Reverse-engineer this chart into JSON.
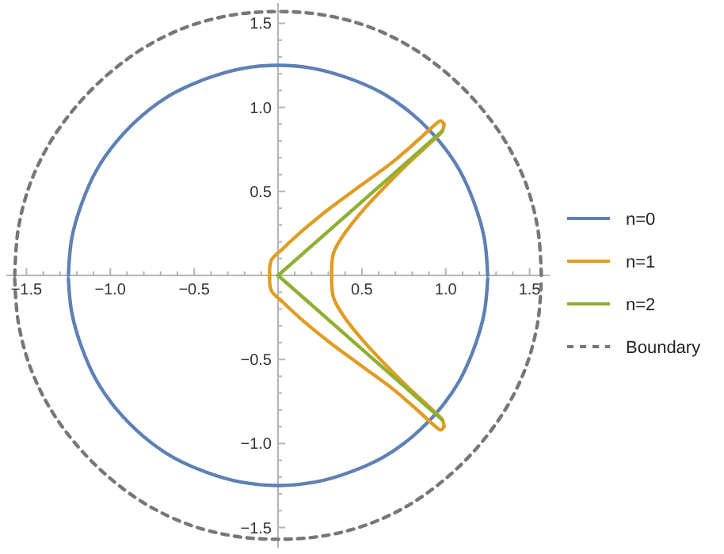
{
  "chart_data": {
    "type": "line",
    "xlim": [
      -1.62,
      1.62
    ],
    "ylim": [
      -1.62,
      1.62
    ],
    "xticks": [
      {
        "value": -1.5,
        "label": "−1.5"
      },
      {
        "value": -1.4,
        "label": null
      },
      {
        "value": -1.3,
        "label": null
      },
      {
        "value": -1.2,
        "label": null
      },
      {
        "value": -1.1,
        "label": null
      },
      {
        "value": -1.0,
        "label": "−1.0"
      },
      {
        "value": -0.9,
        "label": null
      },
      {
        "value": -0.8,
        "label": null
      },
      {
        "value": -0.7,
        "label": null
      },
      {
        "value": -0.6,
        "label": null
      },
      {
        "value": -0.5,
        "label": "−0.5"
      },
      {
        "value": -0.4,
        "label": null
      },
      {
        "value": -0.3,
        "label": null
      },
      {
        "value": -0.2,
        "label": null
      },
      {
        "value": -0.1,
        "label": null
      },
      {
        "value": 0.1,
        "label": null
      },
      {
        "value": 0.2,
        "label": null
      },
      {
        "value": 0.3,
        "label": null
      },
      {
        "value": 0.4,
        "label": null
      },
      {
        "value": 0.5,
        "label": "0.5"
      },
      {
        "value": 0.6,
        "label": null
      },
      {
        "value": 0.7,
        "label": null
      },
      {
        "value": 0.8,
        "label": null
      },
      {
        "value": 0.9,
        "label": null
      },
      {
        "value": 1.0,
        "label": "1.0"
      },
      {
        "value": 1.1,
        "label": null
      },
      {
        "value": 1.2,
        "label": null
      },
      {
        "value": 1.3,
        "label": null
      },
      {
        "value": 1.4,
        "label": null
      },
      {
        "value": 1.5,
        "label": "1.5"
      }
    ],
    "yticks": [
      {
        "value": -1.5,
        "label": "−1.5"
      },
      {
        "value": -1.4,
        "label": null
      },
      {
        "value": -1.3,
        "label": null
      },
      {
        "value": -1.2,
        "label": null
      },
      {
        "value": -1.1,
        "label": null
      },
      {
        "value": -1.0,
        "label": "−1.0"
      },
      {
        "value": -0.9,
        "label": null
      },
      {
        "value": -0.8,
        "label": null
      },
      {
        "value": -0.7,
        "label": null
      },
      {
        "value": -0.6,
        "label": null
      },
      {
        "value": -0.5,
        "label": "−0.5"
      },
      {
        "value": -0.4,
        "label": null
      },
      {
        "value": -0.3,
        "label": null
      },
      {
        "value": -0.2,
        "label": null
      },
      {
        "value": -0.1,
        "label": null
      },
      {
        "value": 0.1,
        "label": null
      },
      {
        "value": 0.2,
        "label": null
      },
      {
        "value": 0.3,
        "label": null
      },
      {
        "value": 0.4,
        "label": null
      },
      {
        "value": 0.5,
        "label": "0.5"
      },
      {
        "value": 0.6,
        "label": null
      },
      {
        "value": 0.7,
        "label": null
      },
      {
        "value": 0.8,
        "label": null
      },
      {
        "value": 0.9,
        "label": null
      },
      {
        "value": 1.0,
        "label": "1.0"
      },
      {
        "value": 1.1,
        "label": null
      },
      {
        "value": 1.2,
        "label": null
      },
      {
        "value": 1.3,
        "label": null
      },
      {
        "value": 1.4,
        "label": null
      },
      {
        "value": 1.5,
        "label": "1.5"
      }
    ],
    "legend": "right",
    "marker": "none",
    "series": [
      {
        "name": "n=0",
        "color": "#5e81b5",
        "line_style": "solid",
        "x": [
          1.25,
          1.23,
          1.17,
          1.08,
          0.96,
          0.8,
          0.63,
          0.43,
          0.22,
          0,
          -0.22,
          -0.43,
          -0.63,
          -0.8,
          -0.96,
          -1.08,
          -1.17,
          -1.23,
          -1.25
        ],
        "values": [
          0,
          0.22,
          0.43,
          0.63,
          0.8,
          0.96,
          1.08,
          1.17,
          1.23,
          1.25,
          1.23,
          1.17,
          1.08,
          0.96,
          0.8,
          0.63,
          0.43,
          0.22,
          0
        ]
      },
      {
        "color": "#5e81b5",
        "line_style": "solid",
        "x": [
          -1.25,
          -1.23,
          -1.17,
          -1.08,
          -0.96,
          -0.8,
          -0.63,
          -0.43,
          -0.22,
          0,
          0.22,
          0.43,
          0.63,
          0.8,
          0.96,
          1.08,
          1.17,
          1.23,
          1.25
        ],
        "values": [
          -0.02,
          -0.22,
          -0.43,
          -0.63,
          -0.8,
          -0.96,
          -1.08,
          -1.17,
          -1.23,
          -1.25,
          -1.23,
          -1.17,
          -1.08,
          -0.96,
          -0.8,
          -0.63,
          -0.43,
          -0.22,
          -0.02
        ]
      },
      {
        "name": "n=1",
        "color": "#e19c24",
        "line_style": "solid",
        "x": [
          -0.05,
          -0.04,
          0.03,
          0.15,
          0.31,
          0.5,
          0.69,
          0.84,
          0.94,
          0.97,
          0.99
        ],
        "values": [
          0,
          0.09,
          0.16,
          0.27,
          0.4,
          0.54,
          0.68,
          0.81,
          0.9,
          0.92,
          0.9
        ]
      },
      {
        "color": "#e19c24",
        "line_style": "solid",
        "x": [
          0.99,
          0.98,
          0.91,
          0.78,
          0.62,
          0.5,
          0.39,
          0.33,
          0.32
        ],
        "values": [
          0.9,
          0.86,
          0.79,
          0.67,
          0.51,
          0.38,
          0.24,
          0.13,
          0
        ]
      },
      {
        "color": "#e19c24",
        "line_style": "solid",
        "x": [
          0.32,
          0.33,
          0.39,
          0.5,
          0.62,
          0.78,
          0.91,
          0.98,
          0.99
        ],
        "values": [
          0,
          -0.13,
          -0.24,
          -0.38,
          -0.51,
          -0.67,
          -0.79,
          -0.86,
          -0.9
        ]
      },
      {
        "color": "#e19c24",
        "line_style": "solid",
        "x": [
          0.99,
          0.97,
          0.94,
          0.84,
          0.69,
          0.5,
          0.31,
          0.15,
          0.03,
          -0.04,
          -0.05
        ],
        "values": [
          -0.9,
          -0.92,
          -0.9,
          -0.81,
          -0.68,
          -0.54,
          -0.4,
          -0.27,
          -0.16,
          -0.09,
          0
        ]
      },
      {
        "name": "n=2",
        "color": "#8fb032",
        "line_style": "solid",
        "x": [
          0,
          0.98
        ],
        "values": [
          0,
          0.86
        ]
      },
      {
        "color": "#8fb032",
        "line_style": "solid",
        "x": [
          0,
          0.98
        ],
        "values": [
          0,
          -0.86
        ]
      },
      {
        "name": "Boundary",
        "color": "#777777",
        "line_style": "dashed",
        "x": [
          1.57,
          1.55,
          1.48,
          1.36,
          1.2,
          1.01,
          0.79,
          0.54,
          0.27,
          0,
          -0.27,
          -0.54,
          -0.79,
          -1.01,
          -1.2,
          -1.36,
          -1.48,
          -1.55,
          -1.57
        ],
        "values": [
          0,
          0.27,
          0.54,
          0.79,
          1.01,
          1.2,
          1.36,
          1.48,
          1.55,
          1.57,
          1.55,
          1.48,
          1.36,
          1.2,
          1.01,
          0.79,
          0.54,
          0.27,
          0
        ]
      },
      {
        "color": "#777777",
        "line_style": "dashed",
        "x": [
          -1.57,
          -1.55,
          -1.48,
          -1.36,
          -1.2,
          -1.01,
          -0.79,
          -0.54,
          -0.27,
          0,
          0.27,
          0.54,
          0.79,
          1.01,
          1.2,
          1.36,
          1.48,
          1.55,
          1.57
        ],
        "values": [
          -0.02,
          -0.27,
          -0.54,
          -0.79,
          -1.01,
          -1.2,
          -1.36,
          -1.48,
          -1.55,
          -1.57,
          -1.55,
          -1.48,
          -1.36,
          -1.2,
          -1.01,
          -0.79,
          -0.54,
          -0.27,
          -0.02
        ]
      }
    ]
  }
}
